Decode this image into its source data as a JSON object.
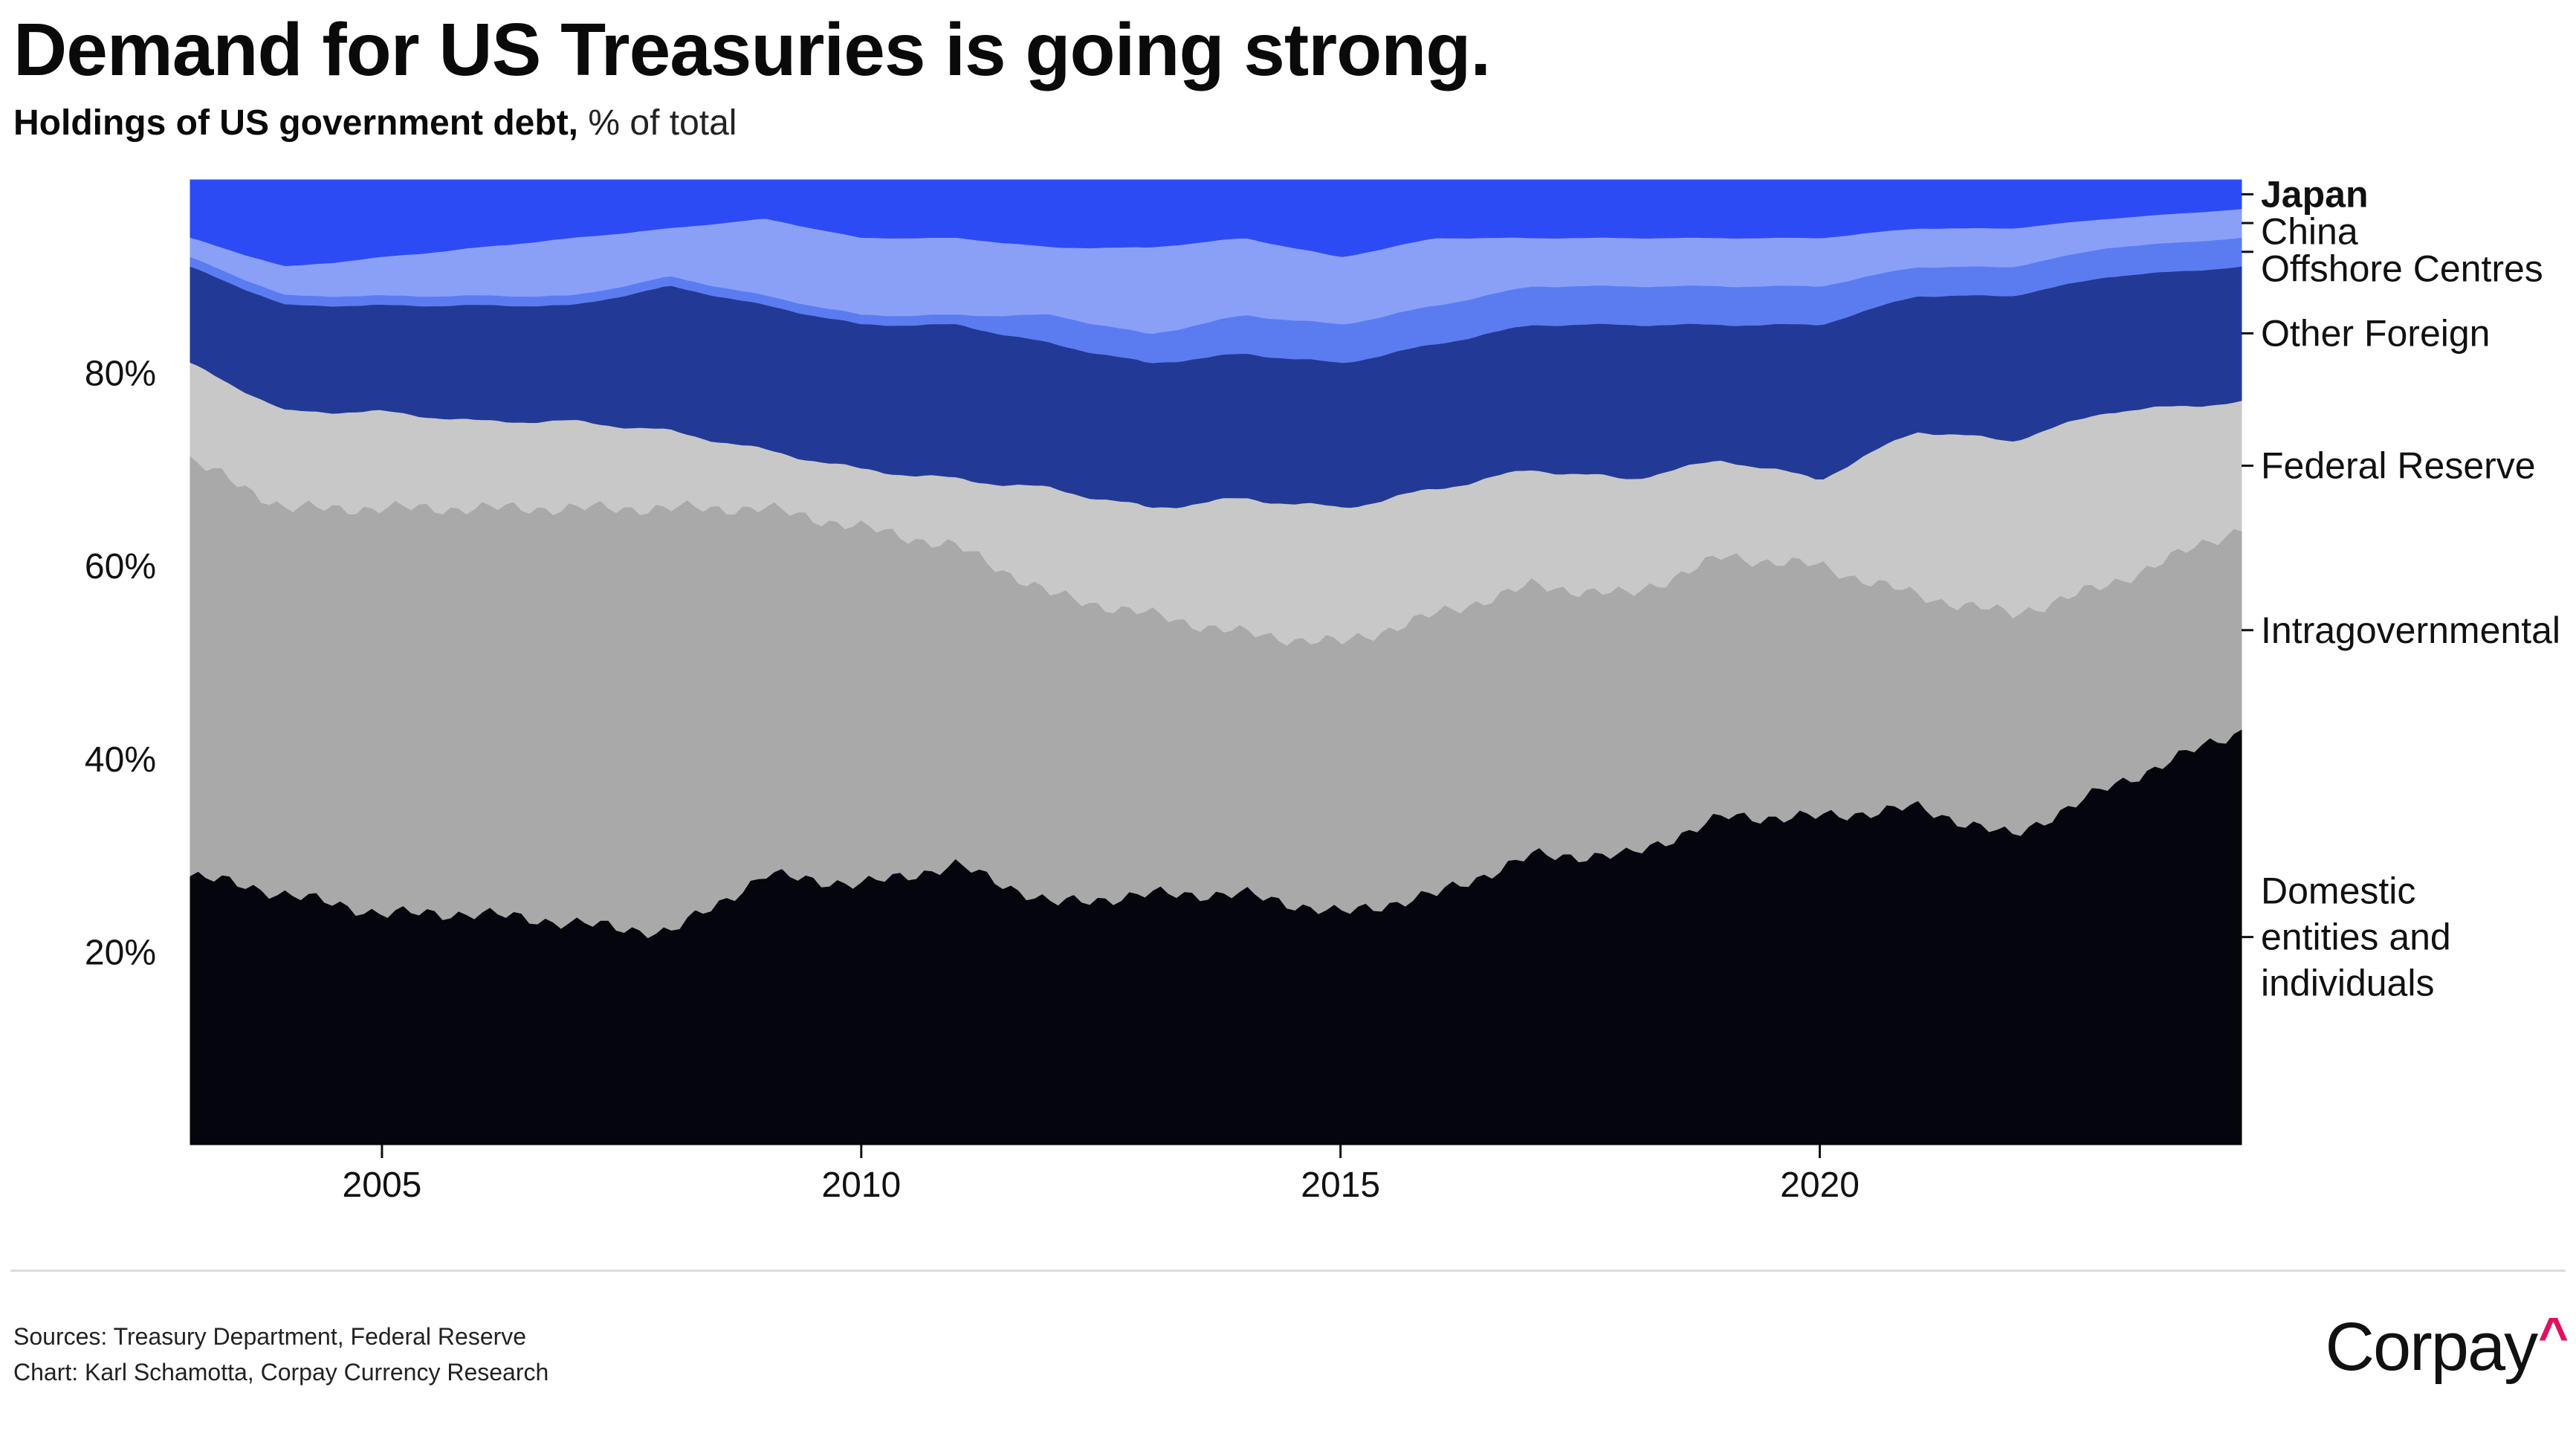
{
  "title": "Demand for US Treasuries is going strong.",
  "subtitle_main": "Holdings of US government debt,",
  "subtitle_unit": " % of total",
  "source_line1": "Sources: Treasury Department, Federal Reserve",
  "source_line2": "Chart: Karl Schamotta, Corpay Currency Research",
  "logo_text": "Corpay",
  "logo_mark": "^",
  "logo_accent": "#e0115f",
  "chart_data": {
    "type": "area",
    "stacked": true,
    "title": "Demand for US Treasuries is going strong.",
    "subtitle": "Holdings of US government debt, % of total",
    "xlabel": "",
    "ylabel": "",
    "xlim": [
      2003.0,
      2024.4
    ],
    "ylim": [
      0,
      100
    ],
    "grid": false,
    "legend": "labels at right end of each band",
    "x_ticks": [
      2005,
      2010,
      2015,
      2020
    ],
    "x_tick_labels": [
      "2005",
      "2010",
      "2015",
      "2020"
    ],
    "y_ticks": [
      20,
      40,
      60,
      80
    ],
    "y_tick_labels": [
      "20%",
      "40%",
      "60%",
      "80%"
    ],
    "x": [
      2003.0,
      2004.0,
      2005.0,
      2006.0,
      2007.0,
      2008.0,
      2009.0,
      2010.0,
      2011.0,
      2012.0,
      2013.0,
      2014.0,
      2015.0,
      2016.0,
      2017.0,
      2018.0,
      2019.0,
      2020.0,
      2021.0,
      2022.0,
      2023.0,
      2024.4
    ],
    "series": [
      {
        "name": "Domestic\nentities and\nindividuals",
        "color": "#05050d",
        "values": [
          28,
          26,
          24,
          24,
          23,
          22,
          28,
          27,
          29,
          25,
          26,
          26,
          24,
          26,
          30,
          30,
          34,
          34,
          35,
          32,
          37,
          43
        ]
      },
      {
        "name": "Intragovernmental",
        "color": "#a9a9a9",
        "values": [
          43,
          40,
          42,
          42,
          43,
          44,
          38,
          37,
          33,
          32,
          29,
          27,
          28,
          29,
          28,
          27,
          27,
          26,
          22,
          23,
          21,
          21
        ]
      },
      {
        "name": "Federal Reserve",
        "color": "#c8c8c8",
        "values": [
          10,
          10,
          10,
          9,
          9,
          8,
          6,
          6,
          7,
          11,
          11,
          14,
          14,
          13,
          12,
          12,
          10,
          9,
          17,
          18,
          18,
          13
        ]
      },
      {
        "name": "Other Foreign",
        "color": "#223a96",
        "values": [
          10,
          11,
          11,
          12,
          12,
          15,
          15,
          15,
          16,
          15,
          15,
          15,
          15,
          15,
          15,
          16,
          14,
          16,
          14,
          15,
          14,
          14
        ]
      },
      {
        "name": "Offshore Centres",
        "color": "#5b7cf1",
        "values": [
          1,
          1,
          1,
          1,
          1,
          1,
          1,
          1,
          1,
          3,
          3,
          4,
          4,
          4,
          4,
          4,
          4,
          4,
          3,
          3,
          3,
          3
        ]
      },
      {
        "name": "China",
        "color": "#8aa0f7",
        "values": [
          2,
          3,
          4,
          5,
          6,
          5,
          8,
          8,
          8,
          7,
          9,
          8,
          7,
          7,
          5,
          5,
          5,
          5,
          4,
          4,
          3,
          3
        ]
      },
      {
        "name": "Japan",
        "color": "#2d4bf5",
        "values": [
          6,
          9,
          8,
          7,
          6,
          5,
          4,
          6,
          6,
          7,
          7,
          6,
          8,
          6,
          6,
          6,
          6,
          6,
          5,
          5,
          4,
          3
        ]
      }
    ]
  }
}
